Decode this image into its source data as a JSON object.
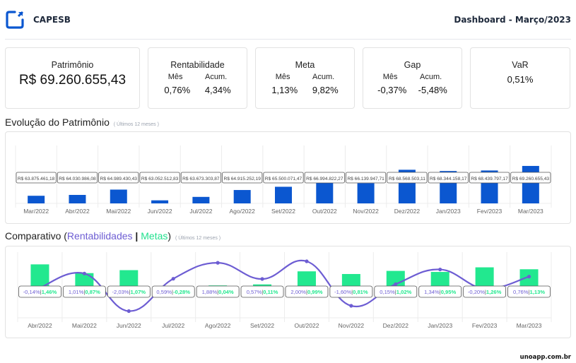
{
  "header": {
    "brand": "CAPESB",
    "title": "Dashboard - Março/2023",
    "logo_color": "#0b57d0"
  },
  "cards": {
    "patrimonio": {
      "title": "Patrimônio",
      "value": "R$ 69.260.655,43"
    },
    "rentabilidade": {
      "title": "Rentabilidade",
      "mes_label": "Mês",
      "acum_label": "Acum.",
      "mes": "0,76%",
      "acum": "4,34%"
    },
    "meta": {
      "title": "Meta",
      "mes_label": "Mês",
      "acum_label": "Acum.",
      "mes": "1,13%",
      "acum": "9,82%"
    },
    "gap": {
      "title": "Gap",
      "mes_label": "Mês",
      "acum_label": "Acum.",
      "mes": "-0,37%",
      "acum": "-5,48%"
    },
    "var": {
      "title": "VaR",
      "value": "0,51%"
    }
  },
  "sections": {
    "evolucao": {
      "title": "Evolução do Patrimônio",
      "hint": "( Últimos 12 meses )"
    },
    "comparativo": {
      "title_prefix": "Comparativo (",
      "rent": "Rentabilidades",
      "sep": " | ",
      "metas": "Metas",
      "title_suffix": ")",
      "hint": "( Últimos 12 meses )"
    }
  },
  "footer": {
    "text": "unoapp.com.br"
  },
  "colors": {
    "bar_blue": "#0b57d0",
    "line_purple": "#6d5dd3",
    "bar_green": "#22e88f"
  },
  "chart_data": [
    {
      "type": "bar",
      "title": "Evolução do Patrimônio",
      "categories": [
        "Mar/2022",
        "Abr/2022",
        "Mai/2022",
        "Jun/2022",
        "Jul/2022",
        "Ago/2022",
        "Set/2022",
        "Out/2022",
        "Nov/2022",
        "Dez/2022",
        "Jan/2023",
        "Fev/2023",
        "Mar/2023"
      ],
      "values": [
        63875461.18,
        64030986.08,
        64989430.43,
        63052512.83,
        63673303.87,
        64915252.19,
        65500071.47,
        66994822.27,
        66139947.71,
        68568503.11,
        68344158.17,
        68439797.17,
        69260655.43
      ],
      "labels": [
        "R$ 63.875.461,18",
        "R$ 64.030.986,08",
        "R$ 64.989.430,43",
        "R$ 63.052.512,83",
        "R$ 63.673.303,87",
        "R$ 64.915.252,19",
        "R$ 65.500.071,47",
        "R$ 66.994.822,27",
        "R$ 66.139.947,71",
        "R$ 68.568.503,11",
        "R$ 68.344.158,17",
        "R$ 68.439.797,17",
        "R$ 69.260.655,43"
      ],
      "xlabel": "",
      "ylabel": "",
      "ylim": [
        62500000,
        69000000
      ],
      "grid": true
    },
    {
      "type": "bar+line",
      "title": "Comparativo (Rentabilidades | Metas)",
      "categories": [
        "Abr/2022",
        "Mai/2022",
        "Jun/2022",
        "Jul/2022",
        "Ago/2022",
        "Set/2022",
        "Out/2022",
        "Nov/2022",
        "Dez/2022",
        "Jan/2023",
        "Fev/2023",
        "Mar/2023"
      ],
      "series": [
        {
          "name": "Rentabilidades",
          "kind": "line",
          "values": [
            -0.14,
            1.01,
            -2.03,
            0.59,
            1.88,
            0.57,
            2.0,
            -1.6,
            0.15,
            1.34,
            -0.2,
            0.76
          ],
          "labels": [
            "-0,14%",
            "1,01%",
            "-2,03%",
            "0,59%",
            "1,88%",
            "0,57%",
            "2,00%",
            "-1,60%",
            "0,15%",
            "1,34%",
            "-0,20%",
            "0,76%"
          ]
        },
        {
          "name": "Metas",
          "kind": "bar",
          "values": [
            1.46,
            0.87,
            1.07,
            -0.28,
            0.04,
            0.11,
            0.99,
            0.81,
            1.02,
            0.95,
            1.26,
            1.13
          ],
          "labels": [
            "1,46%",
            "0,87%",
            "1,07%",
            "-0,28%",
            "0,04%",
            "0,11%",
            "0,99%",
            "0,81%",
            "1,02%",
            "0,95%",
            "1,26%",
            "1,13%"
          ]
        }
      ],
      "ylim": [
        -2.5,
        2.5
      ],
      "grid": true
    }
  ]
}
